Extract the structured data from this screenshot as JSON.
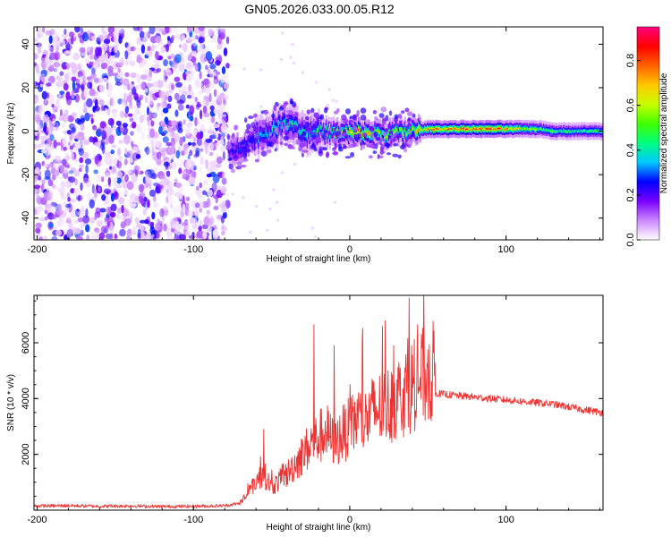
{
  "title": "GN05.2026.033.00.05.R12",
  "chart_data": [
    {
      "type": "heatmap",
      "xlabel": "Height of straight line (km)",
      "ylabel": "Frequency (Hz)",
      "xlim": [
        -202,
        162
      ],
      "ylim": [
        -50,
        48
      ],
      "xticks": [
        -200,
        -100,
        0,
        100
      ],
      "yticks": [
        -40,
        -20,
        0,
        20,
        40
      ],
      "colorbar": {
        "label": "Normalized spectral amplitude",
        "range": [
          0,
          0.95
        ],
        "ticks": [
          0.0,
          0.2,
          0.4,
          0.6,
          0.8
        ],
        "tick_labels": [
          "0.0",
          "0.2",
          "0.4",
          "0.6",
          "0.8"
        ],
        "colors": [
          "#ffffff",
          "#cc88ff",
          "#7a00ff",
          "#0000ff",
          "#00c8ff",
          "#00ff80",
          "#40ff00",
          "#c8ff00",
          "#ffc800",
          "#ff6000",
          "#ff0000",
          "#ff0080"
        ]
      },
      "noise_region": {
        "x_range": [
          -202,
          -78
        ],
        "amplitude": [
          0.02,
          0.3
        ]
      },
      "signal_ridge": {
        "x": [
          -78,
          -70,
          -60,
          -50,
          -40,
          -35,
          -30,
          -20,
          -10,
          0,
          10,
          20,
          30,
          40,
          50,
          60,
          70,
          80,
          90,
          100,
          110,
          120,
          130,
          140,
          150,
          162
        ],
        "freq": [
          -10,
          -7,
          -3,
          1,
          4,
          3,
          -1,
          0,
          -1,
          -1,
          -1,
          -1,
          -1,
          0,
          1,
          1,
          1,
          1,
          1,
          1,
          1,
          1,
          0,
          0,
          0,
          0
        ],
        "peak_amplitude": [
          0.25,
          0.3,
          0.35,
          0.45,
          0.5,
          0.45,
          0.5,
          0.5,
          0.55,
          0.8,
          0.85,
          0.6,
          0.65,
          0.7,
          0.8,
          0.85,
          0.9,
          0.9,
          0.9,
          0.85,
          0.7,
          0.6,
          0.55,
          0.5,
          0.5,
          0.5
        ]
      }
    },
    {
      "type": "line",
      "xlabel": "Height of straight line (km)",
      "ylabel": "SNR (10 * v/v)",
      "xlim": [
        -202,
        162
      ],
      "ylim": [
        0,
        7700
      ],
      "xticks": [
        -200,
        -100,
        0,
        100
      ],
      "yticks": [
        2000,
        4000,
        6000
      ],
      "color": "#ee3333",
      "series": [
        {
          "name": "SNR",
          "x": [
            -202,
            -180,
            -160,
            -140,
            -120,
            -100,
            -80,
            -70,
            -65,
            -60,
            -55,
            -50,
            -45,
            -40,
            -35,
            -30,
            -25,
            -20,
            -15,
            -10,
            -5,
            0,
            5,
            10,
            15,
            20,
            25,
            30,
            35,
            40,
            45,
            50,
            55,
            60,
            70,
            80,
            90,
            100,
            110,
            120,
            130,
            140,
            150,
            162
          ],
          "y": [
            150,
            160,
            140,
            150,
            130,
            140,
            160,
            250,
            500,
            900,
            1100,
            700,
            900,
            1100,
            1400,
            1700,
            2000,
            2200,
            2400,
            2000,
            2300,
            2500,
            2800,
            2700,
            3000,
            3100,
            3200,
            3400,
            3600,
            3800,
            4000,
            4100,
            4200,
            4150,
            4100,
            4050,
            4000,
            3950,
            3900,
            3850,
            3800,
            3700,
            3600,
            3500
          ]
        }
      ],
      "spikes": [
        {
          "x": -55,
          "y": 2900
        },
        {
          "x": -23,
          "y": 6650
        },
        {
          "x": -10,
          "y": 5900
        },
        {
          "x": 8,
          "y": 6100
        },
        {
          "x": 28,
          "y": 5900
        },
        {
          "x": 38,
          "y": 7600
        },
        {
          "x": 50,
          "y": 5750
        }
      ]
    }
  ]
}
